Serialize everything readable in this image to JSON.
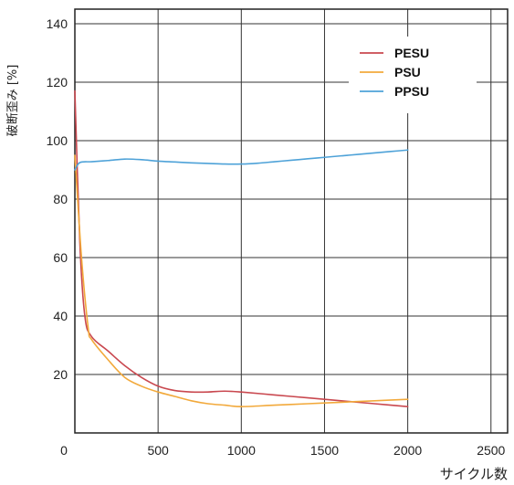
{
  "chart_data": {
    "type": "line",
    "title": "",
    "xlabel": "サイクル数",
    "ylabel": "破断歪み [%]",
    "xlim": [
      0,
      2600
    ],
    "ylim": [
      0,
      145
    ],
    "xticks": [
      0,
      500,
      1000,
      1500,
      2000,
      2500
    ],
    "xtick_labels": [
      "0",
      "500",
      "1000",
      "1500",
      "2000",
      "2500"
    ],
    "yticks": [
      20,
      40,
      60,
      80,
      100,
      120,
      140
    ],
    "ytick_labels": [
      "20",
      "40",
      "60",
      "80",
      "100",
      "120",
      "140"
    ],
    "grid": true,
    "legend_position": "top-right",
    "series": [
      {
        "name": "PESU",
        "color": "#c9484f",
        "points": [
          [
            0,
            117
          ],
          [
            30,
            65
          ],
          [
            60,
            40
          ],
          [
            100,
            33
          ],
          [
            200,
            28
          ],
          [
            300,
            23
          ],
          [
            400,
            19
          ],
          [
            500,
            16
          ],
          [
            600,
            14.5
          ],
          [
            700,
            14
          ],
          [
            800,
            14
          ],
          [
            900,
            14.3
          ],
          [
            1000,
            14
          ],
          [
            1200,
            13
          ],
          [
            1400,
            12
          ],
          [
            1600,
            11
          ],
          [
            1800,
            10
          ],
          [
            2000,
            9
          ]
        ]
      },
      {
        "name": "PSU",
        "color": "#f2a93b",
        "points": [
          [
            0,
            95
          ],
          [
            40,
            60
          ],
          [
            80,
            36
          ],
          [
            100,
            32
          ],
          [
            200,
            25
          ],
          [
            300,
            19
          ],
          [
            400,
            16
          ],
          [
            500,
            14
          ],
          [
            600,
            12.5
          ],
          [
            700,
            11
          ],
          [
            800,
            10
          ],
          [
            900,
            9.5
          ],
          [
            1000,
            9
          ],
          [
            1200,
            9.5
          ],
          [
            1400,
            10
          ],
          [
            1600,
            10.5
          ],
          [
            1800,
            11
          ],
          [
            2000,
            11.5
          ]
        ]
      },
      {
        "name": "PPSU",
        "color": "#4ea2d8",
        "points": [
          [
            0,
            90
          ],
          [
            30,
            92.5
          ],
          [
            100,
            92.8
          ],
          [
            200,
            93.2
          ],
          [
            300,
            93.7
          ],
          [
            400,
            93.5
          ],
          [
            500,
            93
          ],
          [
            600,
            92.7
          ],
          [
            700,
            92.4
          ],
          [
            800,
            92.2
          ],
          [
            900,
            92
          ],
          [
            1000,
            92
          ],
          [
            1100,
            92.3
          ],
          [
            1200,
            92.8
          ],
          [
            1300,
            93.3
          ],
          [
            1400,
            93.8
          ],
          [
            1500,
            94.3
          ],
          [
            1600,
            94.8
          ],
          [
            1700,
            95.3
          ],
          [
            1800,
            95.8
          ],
          [
            1900,
            96.3
          ],
          [
            2000,
            96.8
          ]
        ]
      }
    ]
  }
}
